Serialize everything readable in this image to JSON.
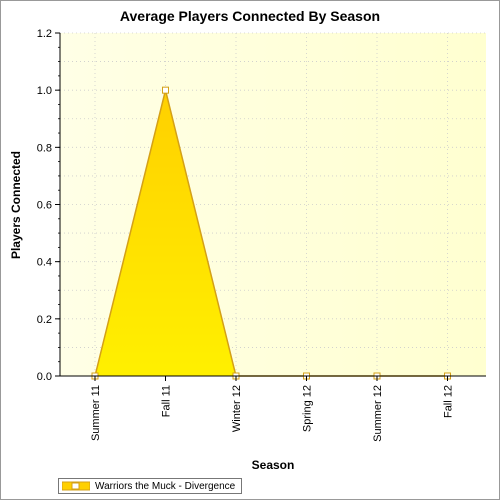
{
  "chart_data": {
    "type": "area",
    "title": "Average Players Connected By Season",
    "xlabel": "Season",
    "ylabel": "Players Connected",
    "categories": [
      "Summer 11",
      "Fall 11",
      "Winter 12",
      "Spring 12",
      "Summer 12",
      "Fall 12"
    ],
    "series": [
      {
        "name": "Warriors the Muck - Divergence",
        "values": [
          0,
          1.0,
          0,
          0,
          0,
          0
        ]
      }
    ],
    "ylim": [
      0,
      1.2
    ],
    "yticks": [
      "0.0",
      "0.2",
      "0.4",
      "0.6",
      "0.8",
      "1.0",
      "1.2"
    ],
    "grid": true,
    "legend": "bottom-left",
    "colors": {
      "fill_top": "#ffd000",
      "fill_bottom": "#fff000",
      "line": "#d4a017",
      "background_left": "#ffffe6",
      "background_right": "#ffffd0",
      "grid": "#cccccc"
    }
  }
}
